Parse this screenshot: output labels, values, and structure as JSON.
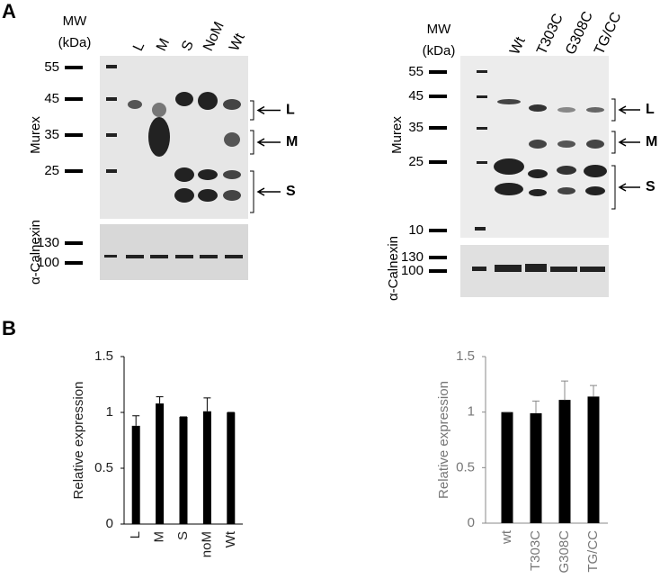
{
  "panel_labels": [
    "A",
    "B"
  ],
  "blots": [
    {
      "mw_header": [
        "MW",
        "(kDa)"
      ],
      "lanes": [
        "L",
        "M",
        "S",
        "NoM",
        "Wt"
      ],
      "top_label": "Murex",
      "mw_markers": [
        55,
        45,
        35,
        25
      ],
      "bottom_label": "α-Calnexin",
      "bottom_markers": [
        130,
        100
      ],
      "bands": [
        "L",
        "M",
        "S"
      ]
    },
    {
      "mw_header": [
        "MW",
        "(kDa)"
      ],
      "lanes": [
        "Wt",
        "T303C",
        "G308C",
        "TG/CC"
      ],
      "top_label": "Murex",
      "mw_markers": [
        55,
        45,
        35,
        25,
        10
      ],
      "bottom_label": "α-Calnexin",
      "bottom_markers": [
        130,
        100
      ],
      "bands": [
        "L",
        "M",
        "S"
      ]
    }
  ],
  "chart_data": [
    {
      "type": "bar",
      "y_label": "Relative expression",
      "categories": [
        "L",
        "M",
        "S",
        "noM",
        "Wt"
      ],
      "values": [
        0.88,
        1.08,
        0.96,
        1.01,
        1.0
      ],
      "errors": [
        0.09,
        0.06,
        0,
        0.12,
        0
      ],
      "color": "#000000",
      "ylim": [
        0,
        1.5
      ],
      "yticks": [
        0,
        0.5,
        1,
        1.5
      ]
    },
    {
      "type": "bar",
      "y_label": "Relative expression",
      "categories": [
        "wt",
        "T303C",
        "G308C",
        "TG/CC"
      ],
      "values": [
        1.0,
        0.99,
        1.11,
        1.14
      ],
      "errors": [
        0,
        0.11,
        0.17,
        0.1
      ],
      "color": "#000000",
      "ylim": [
        0,
        1.5
      ],
      "yticks": [
        0,
        0.5,
        1,
        1.5
      ]
    }
  ]
}
